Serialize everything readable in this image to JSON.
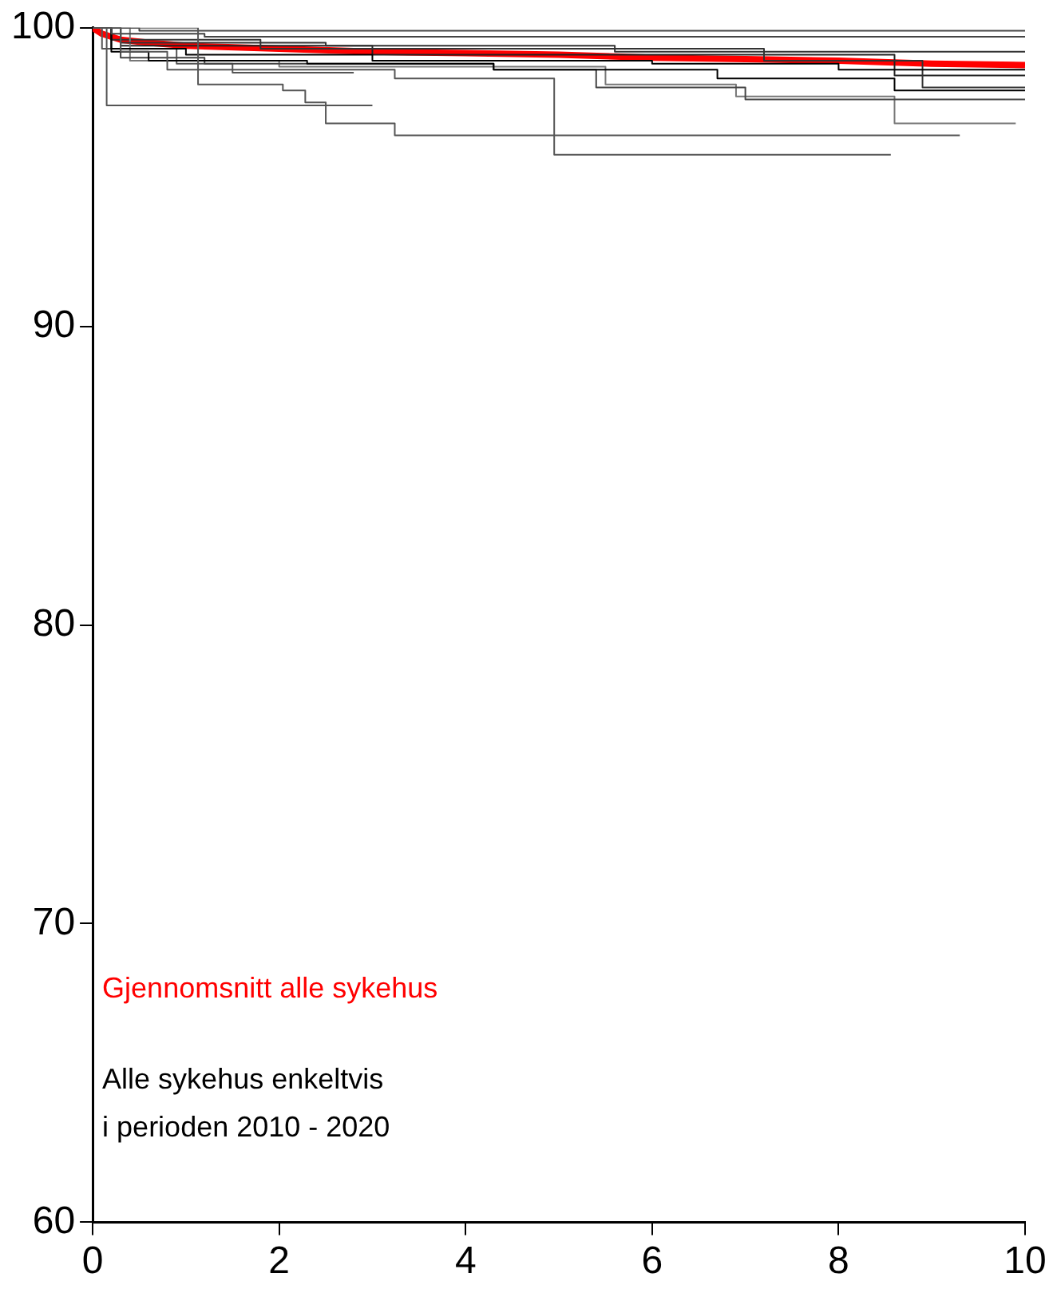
{
  "chart_data": {
    "type": "line",
    "xlim": [
      0,
      10
    ],
    "xticks": [
      0,
      2,
      4,
      6,
      8,
      10
    ],
    "ylim": [
      60,
      100
    ],
    "yticks": [
      60,
      70,
      80,
      90,
      100
    ],
    "grid": false,
    "legend": "bottom left",
    "marker": "none",
    "line_style": "solid",
    "annotations": [
      "Alle sykehus enkeltvis",
      "i perioden 2010 - 2020"
    ],
    "series": [
      {
        "color": "#555555",
        "x": [
          0,
          0.15,
          0.15,
          3.0
        ],
        "values": [
          100,
          100,
          97.4,
          97.4
        ]
      },
      {
        "color": "#555555",
        "x": [
          0,
          1.13,
          1.13,
          2.04,
          2.04,
          2.28,
          2.28,
          2.5,
          2.5,
          3.24,
          3.24,
          9.3
        ],
        "values": [
          100,
          100,
          98.1,
          98.1,
          97.9,
          97.9,
          97.5,
          97.5,
          96.8,
          96.8,
          96.4,
          96.4
        ]
      },
      {
        "color": "#555555",
        "x": [
          0,
          0.3,
          0.3,
          0.8,
          0.8,
          3.24,
          3.24,
          4.95,
          4.95,
          8.56
        ],
        "values": [
          100,
          100,
          99.2,
          99.2,
          98.6,
          98.6,
          98.3,
          98.3,
          95.75,
          95.75
        ]
      },
      {
        "color": "#444444",
        "x": [
          0,
          0.5,
          0.5,
          10
        ],
        "values": [
          100,
          100,
          99.9,
          99.9
        ]
      },
      {
        "color": "#444444",
        "x": [
          0,
          0.2,
          0.2,
          1.2,
          1.2,
          10
        ],
        "values": [
          100,
          100,
          99.8,
          99.8,
          99.7,
          99.7
        ]
      },
      {
        "color": "#333333",
        "x": [
          0,
          0.3,
          0.3,
          2.5,
          2.5,
          5.6,
          5.6,
          10
        ],
        "values": [
          100,
          100,
          99.5,
          99.5,
          99.4,
          99.4,
          99.2,
          99.2
        ]
      },
      {
        "color": "#000000",
        "x": [
          0,
          0.2,
          0.2,
          1,
          1,
          3,
          3,
          6,
          6,
          8,
          8,
          10
        ],
        "values": [
          100,
          100,
          99.3,
          99.3,
          99.1,
          99.1,
          98.9,
          98.9,
          98.8,
          98.8,
          98.6,
          98.6
        ]
      },
      {
        "color": "#000000",
        "x": [
          0,
          0.2,
          0.2,
          0.6,
          0.6,
          2.3,
          2.3,
          4.3,
          4.3,
          6.7,
          6.7,
          8.6,
          8.6,
          10
        ],
        "values": [
          100,
          100,
          99.2,
          99.2,
          98.9,
          98.9,
          98.8,
          98.8,
          98.6,
          98.6,
          98.3,
          98.3,
          97.9,
          97.9
        ]
      },
      {
        "color": "#444444",
        "x": [
          0,
          0.3,
          0.3,
          1.2,
          1.2,
          4.3,
          4.3,
          5.4,
          5.4,
          7,
          7,
          10
        ],
        "values": [
          100,
          100,
          99.0,
          99.0,
          98.8,
          98.8,
          98.6,
          98.6,
          98.0,
          98.0,
          97.6,
          97.6
        ]
      },
      {
        "color": "#777777",
        "x": [
          0,
          0.4,
          0.4,
          2,
          2,
          5.5,
          5.5,
          6.9,
          6.9,
          8.6,
          8.6,
          9.9
        ],
        "values": [
          100,
          100,
          98.9,
          98.9,
          98.7,
          98.7,
          98.1,
          98.1,
          97.7,
          97.7,
          96.8,
          96.8
        ]
      },
      {
        "color": "#333333",
        "x": [
          0,
          0.2,
          0.2,
          1.8,
          1.8,
          7.2,
          7.2,
          8.9,
          8.9,
          10
        ],
        "values": [
          100,
          100,
          99.6,
          99.6,
          99.3,
          99.3,
          98.9,
          98.9,
          98.0,
          98.0
        ]
      },
      {
        "color": "#555555",
        "x": [
          0,
          0.1,
          0.1,
          0.9,
          0.9,
          1.5,
          1.5,
          2.8
        ],
        "values": [
          100,
          100,
          99.3,
          99.3,
          98.8,
          98.8,
          98.5,
          98.5
        ]
      },
      {
        "color": "#222222",
        "x": [
          0,
          0.3,
          0.3,
          3,
          3,
          8.6,
          8.6,
          10
        ],
        "values": [
          100,
          100,
          99.4,
          99.4,
          99.1,
          99.1,
          98.4,
          98.4
        ]
      },
      {
        "name": "Gjennomsnitt alle sykehus",
        "color": "#ff0000",
        "x": [
          0,
          0.1,
          0.3,
          0.6,
          1,
          2,
          3,
          4,
          5,
          6,
          7,
          8,
          9,
          10
        ],
        "values": [
          100,
          99.8,
          99.6,
          99.5,
          99.4,
          99.3,
          99.2,
          99.15,
          99.1,
          99.0,
          98.95,
          98.9,
          98.8,
          98.75
        ]
      }
    ]
  }
}
